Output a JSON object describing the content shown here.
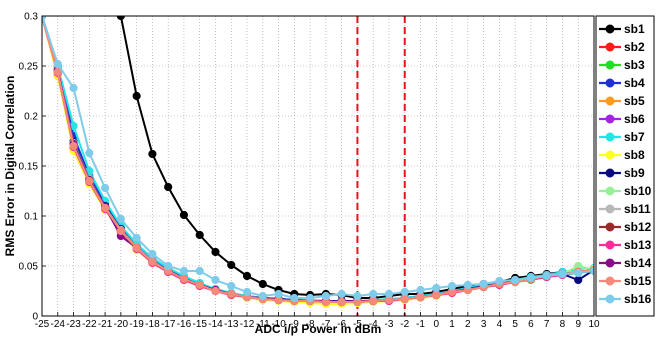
{
  "chart_data": {
    "type": "line",
    "xlabel": "ADC i/p Power in dBm",
    "ylabel": "RMS Error in Digital Correlation",
    "xlim": [
      -25,
      10
    ],
    "ylim": [
      0,
      0.3
    ],
    "x_ticks": [
      -25,
      -24,
      -23,
      -22,
      -21,
      -20,
      -19,
      -18,
      -17,
      -16,
      -15,
      -14,
      -13,
      -12,
      -11,
      -10,
      -9,
      -8,
      -7,
      -6,
      -5,
      -4,
      -3,
      -2,
      -1,
      0,
      1,
      2,
      3,
      4,
      5,
      6,
      7,
      8,
      9,
      10
    ],
    "y_ticks": [
      0,
      0.05,
      0.1,
      0.15,
      0.2,
      0.25,
      0.3
    ],
    "y_tick_labels": [
      "0",
      "0.05",
      "0.1",
      "0.15",
      "0.2",
      "0.25",
      "0.3"
    ],
    "grid": true,
    "legend_position": "right",
    "vertical_reference_lines": [
      {
        "x": -5,
        "color": "#e8141c",
        "style": "dashed"
      },
      {
        "x": -2,
        "color": "#e8141c",
        "style": "dashed"
      }
    ],
    "x": [
      -25,
      -24,
      -23,
      -22,
      -21,
      -20,
      -19,
      -18,
      -17,
      -16,
      -15,
      -14,
      -13,
      -12,
      -11,
      -10,
      -9,
      -8,
      -7,
      -6,
      -5,
      -4,
      -3,
      -2,
      -1,
      0,
      1,
      2,
      3,
      4,
      5,
      6,
      7,
      8,
      9,
      10
    ],
    "series": [
      {
        "name": "sb1",
        "color": "#000000",
        "values": [
          null,
          null,
          null,
          null,
          null,
          0.3,
          0.22,
          0.162,
          0.129,
          0.101,
          0.081,
          0.064,
          0.051,
          0.04,
          0.032,
          0.026,
          0.022,
          0.021,
          0.022,
          0.021,
          0.018,
          0.018,
          0.02,
          0.022,
          0.022,
          0.024,
          0.027,
          0.03,
          0.032,
          0.034,
          0.038,
          0.04,
          0.042,
          0.044,
          0.045,
          0.046
        ]
      },
      {
        "name": "sb2",
        "color": "#ff1a1a",
        "values": [
          0.3,
          0.24,
          0.17,
          0.135,
          0.11,
          0.088,
          0.07,
          0.055,
          0.046,
          0.038,
          0.03,
          0.026,
          0.022,
          0.02,
          0.018,
          0.017,
          0.016,
          0.016,
          0.015,
          0.015,
          0.015,
          0.015,
          0.016,
          0.017,
          0.019,
          0.021,
          0.024,
          0.027,
          0.03,
          0.032,
          0.035,
          0.037,
          0.04,
          0.042,
          0.044,
          0.046
        ]
      },
      {
        "name": "sb3",
        "color": "#22dd22",
        "values": [
          0.3,
          0.245,
          0.175,
          0.138,
          0.108,
          0.085,
          0.068,
          0.054,
          0.045,
          0.037,
          0.031,
          0.025,
          0.021,
          0.019,
          0.018,
          0.016,
          0.016,
          0.015,
          0.015,
          0.014,
          0.014,
          0.015,
          0.016,
          0.017,
          0.018,
          0.021,
          0.023,
          0.026,
          0.029,
          0.031,
          0.034,
          0.036,
          0.039,
          0.041,
          0.043,
          0.045
        ]
      },
      {
        "name": "sb4",
        "color": "#1f2fd8",
        "values": [
          0.3,
          0.25,
          0.18,
          0.14,
          0.112,
          0.088,
          0.07,
          0.056,
          0.046,
          0.038,
          0.031,
          0.026,
          0.022,
          0.02,
          0.018,
          0.017,
          0.016,
          0.015,
          0.015,
          0.015,
          0.015,
          0.015,
          0.016,
          0.018,
          0.02,
          0.022,
          0.025,
          0.028,
          0.03,
          0.033,
          0.036,
          0.038,
          0.041,
          0.043,
          0.045,
          0.047
        ]
      },
      {
        "name": "sb5",
        "color": "#ff9a1a",
        "values": [
          0.3,
          0.242,
          0.168,
          0.134,
          0.107,
          0.084,
          0.067,
          0.053,
          0.044,
          0.036,
          0.03,
          0.025,
          0.021,
          0.019,
          0.017,
          0.016,
          0.015,
          0.015,
          0.014,
          0.014,
          0.014,
          0.015,
          0.015,
          0.017,
          0.019,
          0.021,
          0.024,
          0.026,
          0.029,
          0.032,
          0.034,
          0.037,
          0.039,
          0.042,
          0.044,
          0.046
        ]
      },
      {
        "name": "sb6",
        "color": "#a322e6",
        "values": [
          0.3,
          0.248,
          0.172,
          0.136,
          0.109,
          0.086,
          0.069,
          0.055,
          0.045,
          0.037,
          0.031,
          0.026,
          0.022,
          0.019,
          0.018,
          0.016,
          0.016,
          0.015,
          0.015,
          0.014,
          0.014,
          0.015,
          0.016,
          0.017,
          0.019,
          0.021,
          0.024,
          0.027,
          0.029,
          0.032,
          0.035,
          0.037,
          0.04,
          0.042,
          0.044,
          0.046
        ]
      },
      {
        "name": "sb7",
        "color": "#22e6e6",
        "values": [
          0.3,
          0.25,
          0.19,
          0.145,
          0.115,
          0.09,
          0.072,
          0.058,
          0.048,
          0.04,
          0.033,
          0.027,
          0.023,
          0.02,
          0.018,
          0.017,
          0.016,
          0.016,
          0.015,
          0.015,
          0.015,
          0.016,
          0.017,
          0.018,
          0.02,
          0.022,
          0.025,
          0.028,
          0.031,
          0.034,
          0.036,
          0.039,
          0.041,
          0.044,
          0.046,
          0.048
        ]
      },
      {
        "name": "sb8",
        "color": "#ffff22",
        "values": [
          0.3,
          0.24,
          0.165,
          0.132,
          0.106,
          0.084,
          0.066,
          0.053,
          0.044,
          0.036,
          0.03,
          0.025,
          0.021,
          0.018,
          0.016,
          0.015,
          0.014,
          0.013,
          0.012,
          0.012,
          0.013,
          0.014,
          0.015,
          0.016,
          0.018,
          0.02,
          0.023,
          0.026,
          0.029,
          0.032,
          0.034,
          0.037,
          0.04,
          0.042,
          0.045,
          0.047
        ]
      },
      {
        "name": "sb9",
        "color": "#0a0a80",
        "values": [
          0.3,
          0.246,
          0.174,
          0.137,
          0.11,
          0.087,
          0.069,
          0.055,
          0.045,
          0.037,
          0.031,
          0.026,
          0.022,
          0.019,
          0.018,
          0.017,
          0.016,
          0.015,
          0.015,
          0.015,
          0.015,
          0.015,
          0.016,
          0.017,
          0.019,
          0.021,
          0.024,
          0.027,
          0.03,
          0.032,
          0.035,
          0.037,
          0.04,
          0.042,
          0.036,
          0.046
        ]
      },
      {
        "name": "sb10",
        "color": "#99ee99",
        "values": [
          0.3,
          0.244,
          0.17,
          0.135,
          0.108,
          0.085,
          0.068,
          0.054,
          0.045,
          0.037,
          0.031,
          0.025,
          0.022,
          0.019,
          0.017,
          0.016,
          0.015,
          0.015,
          0.014,
          0.014,
          0.014,
          0.015,
          0.016,
          0.017,
          0.019,
          0.021,
          0.024,
          0.026,
          0.029,
          0.032,
          0.034,
          0.037,
          0.04,
          0.042,
          0.05,
          0.046
        ]
      },
      {
        "name": "sb11",
        "color": "#b8b8b8",
        "values": [
          0.3,
          0.247,
          0.173,
          0.137,
          0.109,
          0.086,
          0.069,
          0.055,
          0.045,
          0.037,
          0.031,
          0.026,
          0.022,
          0.019,
          0.018,
          0.016,
          0.016,
          0.015,
          0.015,
          0.014,
          0.015,
          0.015,
          0.016,
          0.017,
          0.019,
          0.021,
          0.024,
          0.027,
          0.029,
          0.032,
          0.035,
          0.037,
          0.04,
          0.042,
          0.044,
          0.046
        ]
      },
      {
        "name": "sb12",
        "color": "#9a2a2a",
        "values": [
          0.3,
          0.245,
          0.171,
          0.136,
          0.108,
          0.085,
          0.068,
          0.054,
          0.045,
          0.037,
          0.031,
          0.025,
          0.022,
          0.019,
          0.017,
          0.016,
          0.015,
          0.015,
          0.014,
          0.014,
          0.014,
          0.015,
          0.016,
          0.017,
          0.019,
          0.021,
          0.024,
          0.026,
          0.029,
          0.032,
          0.034,
          0.037,
          0.039,
          0.042,
          0.044,
          0.046
        ]
      },
      {
        "name": "sb13",
        "color": "#ff2a9a",
        "values": [
          0.3,
          0.243,
          0.169,
          0.134,
          0.107,
          0.084,
          0.067,
          0.053,
          0.044,
          0.036,
          0.03,
          0.025,
          0.021,
          0.019,
          0.017,
          0.016,
          0.015,
          0.015,
          0.014,
          0.014,
          0.014,
          0.015,
          0.015,
          0.017,
          0.019,
          0.021,
          0.023,
          0.026,
          0.029,
          0.031,
          0.034,
          0.037,
          0.039,
          0.041,
          0.044,
          0.046
        ]
      },
      {
        "name": "sb14",
        "color": "#8a0a8a",
        "values": [
          0.3,
          0.246,
          0.172,
          0.136,
          0.109,
          0.08,
          0.068,
          0.054,
          0.045,
          0.037,
          0.031,
          0.026,
          0.022,
          0.019,
          0.018,
          0.016,
          0.016,
          0.015,
          0.015,
          0.014,
          0.015,
          0.015,
          0.016,
          0.017,
          0.019,
          0.021,
          0.024,
          0.027,
          0.029,
          0.032,
          0.035,
          0.037,
          0.04,
          0.042,
          0.044,
          0.046
        ]
      },
      {
        "name": "sb15",
        "color": "#f58a7a",
        "values": [
          0.3,
          0.244,
          0.17,
          0.135,
          0.108,
          0.085,
          0.068,
          0.054,
          0.045,
          0.037,
          0.031,
          0.025,
          0.022,
          0.019,
          0.017,
          0.016,
          0.015,
          0.015,
          0.014,
          0.014,
          0.014,
          0.015,
          0.016,
          0.017,
          0.019,
          0.021,
          0.024,
          0.026,
          0.029,
          0.032,
          0.034,
          0.037,
          0.04,
          0.042,
          0.044,
          0.046
        ]
      },
      {
        "name": "sb16",
        "color": "#7ecbea",
        "values": [
          0.3,
          0.252,
          0.228,
          0.163,
          0.128,
          0.097,
          0.078,
          0.062,
          0.05,
          0.045,
          0.045,
          0.036,
          0.03,
          0.024,
          0.02,
          0.022,
          0.018,
          0.018,
          0.02,
          0.022,
          0.02,
          0.022,
          0.022,
          0.024,
          0.026,
          0.028,
          0.03,
          0.031,
          0.032,
          0.035,
          0.036,
          0.038,
          0.04,
          0.042,
          0.043,
          0.045
        ]
      }
    ]
  }
}
